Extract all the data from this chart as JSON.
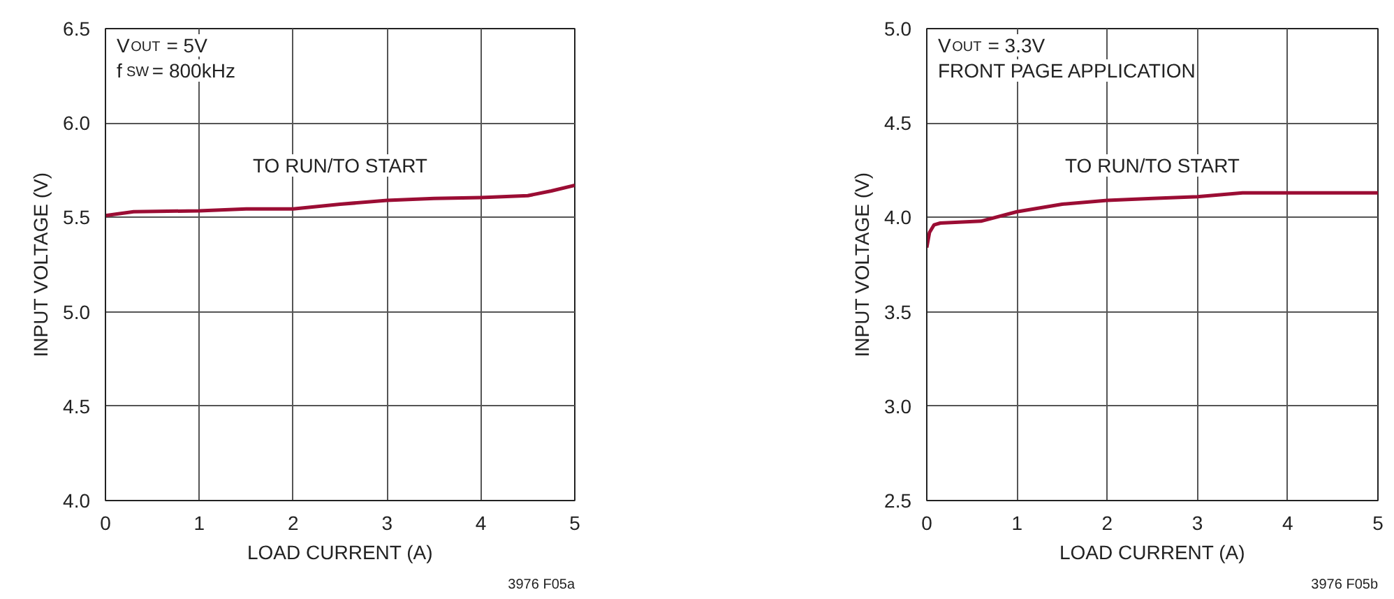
{
  "chart_data": [
    {
      "type": "line",
      "xlabel": "LOAD CURRENT (A)",
      "ylabel": "INPUT VOLTAGE (V)",
      "xlim": [
        0,
        5
      ],
      "ylim": [
        4.0,
        6.5
      ],
      "xticks": [
        0,
        1,
        2,
        3,
        4,
        5
      ],
      "yticks": [
        {
          "value": 4.0,
          "label": "4.0"
        },
        4.5,
        {
          "value": 5.0,
          "label": "5.0"
        },
        5.5,
        {
          "value": 6.0,
          "label": "6.0"
        },
        6.5
      ],
      "grid": true,
      "series": [
        {
          "color": "#9b0d34",
          "x": [
            0,
            0.15,
            0.3,
            1,
            1.5,
            2,
            2.5,
            3,
            3.5,
            4,
            4.5,
            4.75,
            5
          ],
          "values": [
            5.51,
            5.52,
            5.53,
            5.535,
            5.545,
            5.545,
            5.57,
            5.59,
            5.6,
            5.605,
            5.615,
            5.64,
            5.67
          ]
        }
      ],
      "annotations": [
        "V$_{OUT}$ = 5V",
        "f$_{SW}$ = 800kHz",
        "TO RUN/TO START",
        "3976 F05a"
      ]
    },
    {
      "type": "line",
      "xlabel": "LOAD CURRENT (A)",
      "ylabel": "INPUT VOLTAGE (V)",
      "xlim": [
        0,
        5
      ],
      "ylim": [
        2.5,
        5.0
      ],
      "xticks": [
        0,
        1,
        2,
        3,
        4,
        5
      ],
      "yticks": [
        2.5,
        {
          "value": 3.0,
          "label": "3.0"
        },
        3.5,
        {
          "value": 4.0,
          "label": "4.0"
        },
        4.5,
        {
          "value": 5.0,
          "label": "5.0"
        }
      ],
      "grid": true,
      "series": [
        {
          "color": "#9b0d34",
          "x": [
            0,
            0.03,
            0.08,
            0.15,
            0.6,
            1,
            1.5,
            2,
            2.5,
            3,
            3.5,
            4,
            5
          ],
          "values": [
            3.84,
            3.92,
            3.96,
            3.97,
            3.98,
            4.03,
            4.07,
            4.09,
            4.1,
            4.11,
            4.13,
            4.13,
            4.13
          ]
        }
      ],
      "annotations": [
        "V$_{OUT}$ = 3.3V",
        "FRONT PAGE APPLICATION",
        "TO RUN/TO START",
        "3976 F05b"
      ]
    }
  ]
}
